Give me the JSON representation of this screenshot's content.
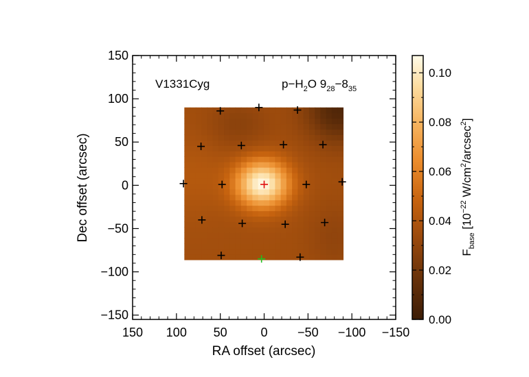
{
  "chart_data": {
    "type": "heatmap",
    "source_label": "V1331Cyg",
    "line_label": {
      "species_prefix": "p−H",
      "species_sub": "2",
      "species_suffix": "O 9",
      "upper_sub": "28",
      "dash": "−8",
      "lower_sub": "35"
    },
    "xlabel": "RA offset (arcsec)",
    "ylabel": "Dec offset (arcsec)",
    "xlim": [
      150,
      -150
    ],
    "ylim": [
      -155,
      150
    ],
    "x_ticks": [
      150,
      100,
      50,
      0,
      -50,
      -100,
      -150
    ],
    "x_tick_labels": [
      "150",
      "100",
      "50",
      "0",
      "−50",
      "−100",
      "−150"
    ],
    "y_ticks": [
      -150,
      -100,
      -50,
      0,
      50,
      100,
      150
    ],
    "y_tick_labels": [
      "−150",
      "−100",
      "−50",
      "0",
      "50",
      "100",
      "150"
    ],
    "map_extent": {
      "ra": [
        91,
        -90
      ],
      "dec": [
        -86,
        90
      ]
    },
    "peak": {
      "ra": 2,
      "dec": 2,
      "value": 0.106
    },
    "colorbar": {
      "range": [
        0.0,
        0.107
      ],
      "ticks": [
        0.0,
        0.02,
        0.04,
        0.06,
        0.08,
        0.1
      ],
      "tick_labels": [
        "0.00",
        "0.02",
        "0.04",
        "0.06",
        "0.08",
        "0.10"
      ],
      "label_main": "F",
      "label_sub": "base",
      "label_unit_a": " [10",
      "label_exp1": "−22",
      "label_unit_b": " W/cm",
      "label_exp2": "2",
      "label_unit_c": "/arcsec",
      "label_exp3": "2",
      "label_unit_d": "]"
    },
    "colors": {
      "center_marker": "#e01010",
      "spaxel_marker": "#000000",
      "offset_marker": "#20c020"
    },
    "spaxels": [
      {
        "ra": 50,
        "dec": 86
      },
      {
        "ra": 6,
        "dec": 90
      },
      {
        "ra": -38,
        "dec": 87
      },
      {
        "ra": 72,
        "dec": 45
      },
      {
        "ra": 26,
        "dec": 46
      },
      {
        "ra": -22,
        "dec": 47
      },
      {
        "ra": -67,
        "dec": 47
      },
      {
        "ra": 92,
        "dec": 2
      },
      {
        "ra": 48,
        "dec": 1
      },
      {
        "ra": -48,
        "dec": 1
      },
      {
        "ra": -89,
        "dec": 4
      },
      {
        "ra": 71,
        "dec": -40
      },
      {
        "ra": 25,
        "dec": -44
      },
      {
        "ra": -24,
        "dec": -45
      },
      {
        "ra": -69,
        "dec": -43
      },
      {
        "ra": 49,
        "dec": -81
      },
      {
        "ra": -41,
        "dec": -83
      }
    ],
    "center_spaxel": {
      "ra": 0,
      "dec": 1
    },
    "offset_spaxel": {
      "ra": 3,
      "dec": -85
    }
  }
}
